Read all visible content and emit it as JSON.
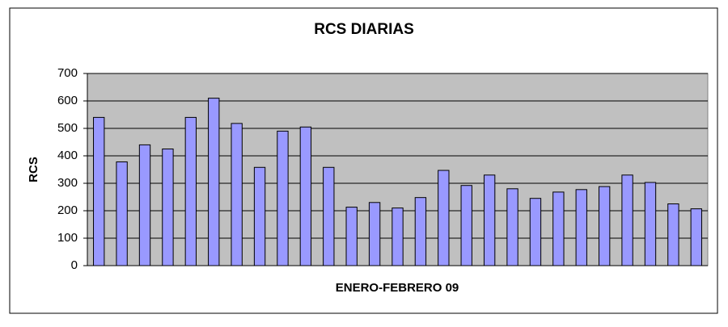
{
  "chart_data": {
    "type": "bar",
    "title": "RCS DIARIAS",
    "y_label": "RCS",
    "x_label": "ENERO-FEBRERO 09",
    "categories": [
      null,
      null,
      null,
      null,
      null,
      null,
      null,
      null,
      null,
      null,
      null,
      null,
      null,
      null,
      null,
      null,
      null,
      null,
      null,
      null,
      null,
      null,
      null,
      null,
      null,
      null,
      null
    ],
    "values": [
      540,
      378,
      440,
      425,
      540,
      610,
      518,
      358,
      490,
      505,
      358,
      213,
      230,
      210,
      248,
      347,
      292,
      330,
      280,
      245,
      268,
      277,
      288,
      330,
      303,
      225,
      207
    ],
    "color": "#9999ff",
    "ylim": [
      0,
      700
    ],
    "yticks": [
      0,
      100,
      200,
      300,
      400,
      500,
      600,
      700
    ],
    "grid": true
  }
}
